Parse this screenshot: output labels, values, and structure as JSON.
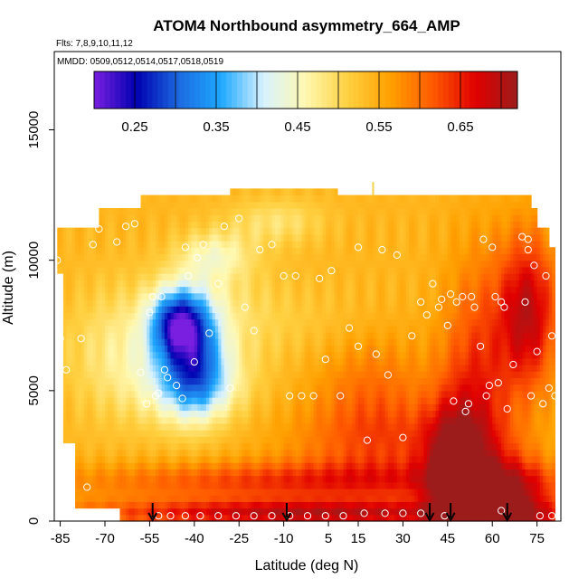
{
  "chart_data": {
    "type": "heatmap",
    "title": "ATOM4 Northbound asymmetry_664_AMP",
    "flights_note": "Flts: 7,8,9,10,11,12",
    "dates_note": "MMDD: 0509,0512,0514,0517,0518,0519",
    "xlabel": "Latitude (deg N)",
    "ylabel": "Altitude (m)",
    "xlim": [
      -87,
      83
    ],
    "ylim": [
      0,
      18000
    ],
    "x_ticks": [
      -85,
      -70,
      -55,
      -40,
      -25,
      -10,
      5,
      15,
      30,
      45,
      60,
      75
    ],
    "y_ticks": [
      0,
      5000,
      10000,
      15000
    ],
    "colorbar": {
      "range": [
        0.2,
        0.72
      ],
      "ticks": [
        0.25,
        0.35,
        0.45,
        0.55,
        0.65
      ],
      "tick_labels": [
        "0.25",
        "0.35",
        "0.45",
        "0.55",
        "0.65"
      ],
      "colors": [
        "#7a1fe0",
        "#0000b0",
        "#1c6ae0",
        "#1ea8ff",
        "#d8f2ff",
        "#fff8b0",
        "#ffd040",
        "#ffa000",
        "#ff5a00",
        "#e00000",
        "#9c1c1c"
      ]
    },
    "domain_extent": [
      {
        "alt": 0,
        "lat": [
          -65,
          81
        ]
      },
      {
        "alt": 500,
        "lat": [
          -80,
          81
        ]
      },
      {
        "alt": 3000,
        "lat": [
          -84,
          81
        ]
      },
      {
        "alt": 9500,
        "lat": [
          -86,
          81
        ]
      },
      {
        "alt": 10500,
        "lat": [
          -86,
          79
        ]
      },
      {
        "alt": 11300,
        "lat": [
          -72,
          75
        ]
      },
      {
        "alt": 11900,
        "lat": [
          -58,
          73
        ]
      },
      {
        "alt": 12500,
        "lat": [
          -28,
          8
        ]
      }
    ],
    "value_field": {
      "background": 0.54,
      "features": [
        {
          "lat": -62,
          "alt": 6500,
          "value": 0.47,
          "r_lat": 20,
          "r_alt": 2500
        },
        {
          "lat": -46,
          "alt": 7600,
          "value": 0.33,
          "r_lat": 9,
          "r_alt": 1300
        },
        {
          "lat": -40,
          "alt": 6500,
          "value": 0.38,
          "r_lat": 10,
          "r_alt": 2200
        },
        {
          "lat": -40,
          "alt": 5200,
          "value": 0.43,
          "r_lat": 16,
          "r_alt": 1400
        },
        {
          "lat": -33,
          "alt": 10200,
          "value": 0.47,
          "r_lat": 12,
          "r_alt": 900
        },
        {
          "lat": -12,
          "alt": 11500,
          "value": 0.49,
          "r_lat": 16,
          "r_alt": 900
        },
        {
          "lat": -30,
          "alt": 8000,
          "value": 0.5,
          "r_lat": 18,
          "r_alt": 2500
        },
        {
          "lat": 0,
          "alt": 7600,
          "value": 0.52,
          "r_lat": 28,
          "r_alt": 1600
        },
        {
          "lat": 20,
          "alt": 5000,
          "value": 0.6,
          "r_lat": 20,
          "r_alt": 2500
        },
        {
          "lat": 25,
          "alt": 3000,
          "value": 0.6,
          "r_lat": 35,
          "r_alt": 1500
        },
        {
          "lat": 55,
          "alt": 5000,
          "value": 0.64,
          "r_lat": 12,
          "r_alt": 5000
        },
        {
          "lat": 47,
          "alt": 2000,
          "value": 0.68,
          "r_lat": 10,
          "r_alt": 2500
        },
        {
          "lat": 72,
          "alt": 8000,
          "value": 0.69,
          "r_lat": 10,
          "r_alt": 3000
        },
        {
          "lat": 0,
          "alt": 1500,
          "value": 0.64,
          "r_lat": 80,
          "r_alt": 800
        },
        {
          "lat": 0,
          "alt": 300,
          "value": 0.69,
          "r_lat": 80,
          "r_alt": 500
        },
        {
          "lat": 65,
          "alt": 300,
          "value": 0.7,
          "r_lat": 15,
          "r_alt": 2000
        }
      ]
    },
    "sample_points": [
      [
        -86,
        10000
      ],
      [
        -85,
        7000
      ],
      [
        -83,
        5800
      ],
      [
        -78,
        7000
      ],
      [
        -76,
        1300
      ],
      [
        -74,
        10600
      ],
      [
        -72,
        11200
      ],
      [
        -66,
        10700
      ],
      [
        -63,
        11300
      ],
      [
        -60,
        11400
      ],
      [
        -58,
        5700
      ],
      [
        -56,
        4500
      ],
      [
        -55,
        8000
      ],
      [
        -54,
        8600
      ],
      [
        -53,
        4800
      ],
      [
        -52,
        4900
      ],
      [
        -51,
        8600
      ],
      [
        -50,
        5800
      ],
      [
        -49,
        5500
      ],
      [
        -46,
        5200
      ],
      [
        -44,
        4700
      ],
      [
        -43,
        10500
      ],
      [
        -42,
        9400
      ],
      [
        -40,
        6100
      ],
      [
        -39,
        10100
      ],
      [
        -37,
        10600
      ],
      [
        -35,
        7200
      ],
      [
        -32,
        9100
      ],
      [
        -30,
        11300
      ],
      [
        -28,
        5100
      ],
      [
        -25,
        11600
      ],
      [
        -23,
        8200
      ],
      [
        -20,
        7300
      ],
      [
        -18,
        10400
      ],
      [
        -14,
        10600
      ],
      [
        -10,
        9400
      ],
      [
        -8,
        4800
      ],
      [
        -6,
        9400
      ],
      [
        -4,
        4800
      ],
      [
        0,
        4800
      ],
      [
        2,
        9300
      ],
      [
        4,
        6200
      ],
      [
        6,
        9600
      ],
      [
        9,
        4800
      ],
      [
        12,
        7400
      ],
      [
        15,
        10500
      ],
      [
        15,
        6700
      ],
      [
        18,
        3100
      ],
      [
        21,
        6400
      ],
      [
        23,
        10400
      ],
      [
        25,
        5600
      ],
      [
        28,
        10200
      ],
      [
        30,
        3200
      ],
      [
        33,
        7100
      ],
      [
        36,
        8400
      ],
      [
        38,
        7900
      ],
      [
        40,
        9100
      ],
      [
        42,
        8200
      ],
      [
        43,
        8500
      ],
      [
        45,
        7500
      ],
      [
        46,
        8700
      ],
      [
        47,
        4600
      ],
      [
        48,
        8400
      ],
      [
        50,
        8600
      ],
      [
        51,
        4200
      ],
      [
        52,
        4500
      ],
      [
        53,
        8600
      ],
      [
        54,
        8200
      ],
      [
        56,
        6700
      ],
      [
        57,
        10800
      ],
      [
        58,
        4800
      ],
      [
        59,
        5200
      ],
      [
        60,
        10500
      ],
      [
        61,
        8600
      ],
      [
        62,
        5300
      ],
      [
        63,
        8400
      ],
      [
        64,
        8200
      ],
      [
        65,
        4300
      ],
      [
        67,
        6000
      ],
      [
        70,
        10900
      ],
      [
        71,
        8400
      ],
      [
        72,
        10400
      ],
      [
        72,
        10800
      ],
      [
        73,
        4800
      ],
      [
        74,
        9800
      ],
      [
        75,
        6500
      ],
      [
        77,
        4500
      ],
      [
        78,
        9400
      ],
      [
        79,
        5100
      ],
      [
        80,
        7100
      ],
      [
        81,
        4800
      ],
      [
        -52,
        200
      ],
      [
        -48,
        200
      ],
      [
        -43,
        200
      ],
      [
        -38,
        200
      ],
      [
        -32,
        200
      ],
      [
        -26,
        200
      ],
      [
        -20,
        200
      ],
      [
        -14,
        200
      ],
      [
        -8,
        200
      ],
      [
        -2,
        200
      ],
      [
        4,
        200
      ],
      [
        10,
        200
      ],
      [
        17,
        300
      ],
      [
        24,
        300
      ],
      [
        30,
        300
      ],
      [
        36,
        300
      ],
      [
        44,
        200
      ],
      [
        63,
        400
      ],
      [
        76,
        200
      ],
      [
        80,
        200
      ]
    ],
    "flight_markers_lat": [
      -54,
      -9,
      39,
      46,
      65
    ],
    "top_tick_lat": 20
  }
}
